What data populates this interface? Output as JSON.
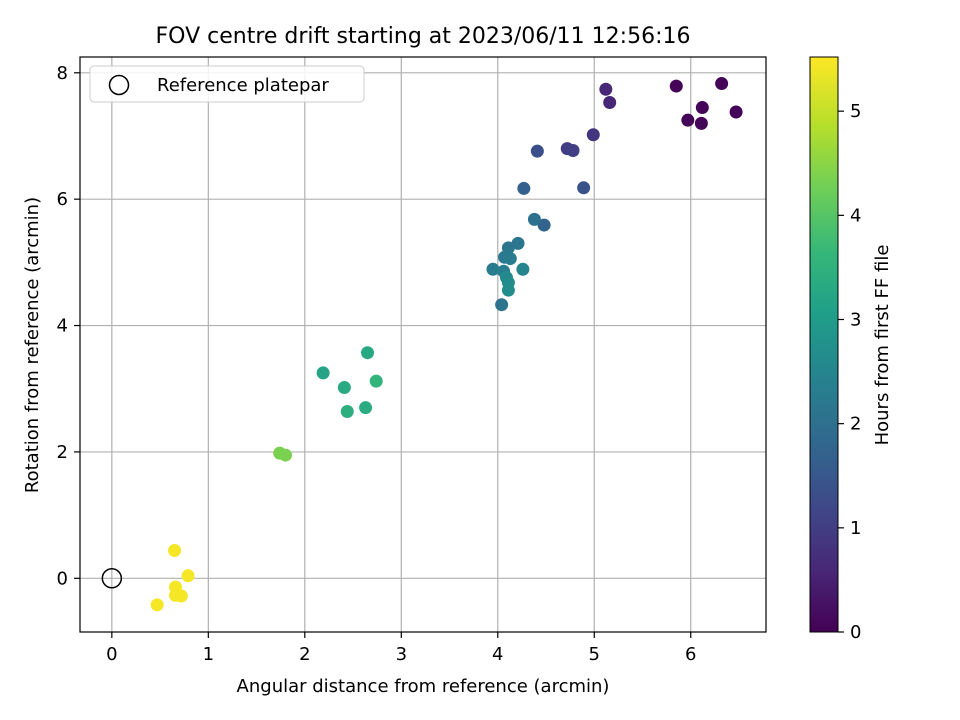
{
  "chart_data": {
    "type": "scatter",
    "title": "FOV centre drift starting at 2023/06/11 12:56:16",
    "xlabel": "Angular distance from reference (arcmin)",
    "ylabel": "Rotation from reference (arcmin)",
    "xlim": [
      -0.33,
      6.78
    ],
    "ylim": [
      -0.85,
      8.25
    ],
    "xticks": [
      0,
      1,
      2,
      3,
      4,
      5,
      6
    ],
    "yticks": [
      0,
      2,
      4,
      6,
      8
    ],
    "grid": true,
    "legend": {
      "placement": "top-left",
      "entries": [
        "Reference platepar"
      ]
    },
    "reference": {
      "name": "Reference platepar",
      "x": 0,
      "y": 0
    },
    "colorbar": {
      "label": "Hours from first FF file",
      "range": [
        0,
        5.52
      ],
      "ticks": [
        0,
        1,
        2,
        3,
        4,
        5
      ],
      "colormap": "viridis",
      "colors": [
        "#440154",
        "#482878",
        "#3e4989",
        "#31688e",
        "#26828e",
        "#1f9e89",
        "#35b779",
        "#6ece58",
        "#b5de2b",
        "#fde725"
      ]
    },
    "points": [
      {
        "x": 5.85,
        "y": 7.79,
        "h": 0.05
      },
      {
        "x": 6.32,
        "y": 7.83,
        "h": 0.05
      },
      {
        "x": 6.12,
        "y": 7.45,
        "h": 0.08
      },
      {
        "x": 5.97,
        "y": 7.25,
        "h": 0.05
      },
      {
        "x": 6.11,
        "y": 7.2,
        "h": 0.05
      },
      {
        "x": 6.47,
        "y": 7.38,
        "h": 0.05
      },
      {
        "x": 5.12,
        "y": 7.74,
        "h": 0.6
      },
      {
        "x": 5.16,
        "y": 7.53,
        "h": 0.6
      },
      {
        "x": 4.99,
        "y": 7.02,
        "h": 0.85
      },
      {
        "x": 4.72,
        "y": 6.8,
        "h": 1.0
      },
      {
        "x": 4.78,
        "y": 6.77,
        "h": 1.05
      },
      {
        "x": 4.41,
        "y": 6.76,
        "h": 1.35
      },
      {
        "x": 4.27,
        "y": 6.17,
        "h": 1.7
      },
      {
        "x": 4.89,
        "y": 6.18,
        "h": 1.4
      },
      {
        "x": 4.48,
        "y": 5.59,
        "h": 1.75
      },
      {
        "x": 4.38,
        "y": 5.68,
        "h": 2.05
      },
      {
        "x": 4.21,
        "y": 5.3,
        "h": 2.15
      },
      {
        "x": 4.11,
        "y": 5.23,
        "h": 2.2
      },
      {
        "x": 4.07,
        "y": 5.08,
        "h": 2.25
      },
      {
        "x": 4.13,
        "y": 5.06,
        "h": 2.3
      },
      {
        "x": 3.95,
        "y": 4.89,
        "h": 2.3
      },
      {
        "x": 4.06,
        "y": 4.86,
        "h": 2.35
      },
      {
        "x": 4.26,
        "y": 4.89,
        "h": 2.5
      },
      {
        "x": 4.09,
        "y": 4.76,
        "h": 2.6
      },
      {
        "x": 4.11,
        "y": 4.68,
        "h": 2.65
      },
      {
        "x": 4.11,
        "y": 4.56,
        "h": 2.7
      },
      {
        "x": 4.04,
        "y": 4.33,
        "h": 2.1
      },
      {
        "x": 2.19,
        "y": 3.25,
        "h": 3.2
      },
      {
        "x": 2.65,
        "y": 3.57,
        "h": 3.3
      },
      {
        "x": 2.41,
        "y": 3.02,
        "h": 3.35
      },
      {
        "x": 2.74,
        "y": 3.12,
        "h": 3.6
      },
      {
        "x": 2.44,
        "y": 2.64,
        "h": 3.45
      },
      {
        "x": 2.63,
        "y": 2.7,
        "h": 3.4
      },
      {
        "x": 1.74,
        "y": 1.98,
        "h": 4.4
      },
      {
        "x": 1.8,
        "y": 1.95,
        "h": 4.4
      },
      {
        "x": 0.65,
        "y": 0.44,
        "h": 5.45
      },
      {
        "x": 0.79,
        "y": 0.04,
        "h": 5.45
      },
      {
        "x": 0.66,
        "y": -0.14,
        "h": 5.45
      },
      {
        "x": 0.66,
        "y": -0.27,
        "h": 5.45
      },
      {
        "x": 0.72,
        "y": -0.28,
        "h": 5.45
      },
      {
        "x": 0.47,
        "y": -0.42,
        "h": 5.45
      }
    ]
  }
}
